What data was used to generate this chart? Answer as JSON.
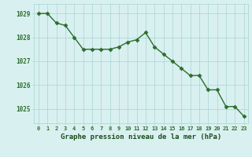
{
  "hours": [
    0,
    1,
    2,
    3,
    4,
    5,
    6,
    7,
    8,
    9,
    10,
    11,
    12,
    13,
    14,
    15,
    16,
    17,
    18,
    19,
    20,
    21,
    22,
    23
  ],
  "pressure": [
    1029.0,
    1029.0,
    1028.6,
    1028.5,
    1028.0,
    1027.5,
    1027.5,
    1027.5,
    1027.5,
    1027.6,
    1027.8,
    1027.9,
    1028.2,
    1027.6,
    1027.3,
    1027.0,
    1026.7,
    1026.4,
    1026.4,
    1025.8,
    1025.8,
    1025.1,
    1025.1,
    1024.7
  ],
  "line_color": "#2d6e2d",
  "marker": "D",
  "marker_size": 2.5,
  "bg_color": "#d9f0f0",
  "grid_color": "#b0d8d8",
  "xlabel": "Graphe pression niveau de la mer (hPa)",
  "xlabel_color": "#1a4d1a",
  "tick_color": "#2d6e2d",
  "ylim": [
    1024.4,
    1029.4
  ],
  "yticks": [
    1025,
    1026,
    1027,
    1028,
    1029
  ],
  "xlim": [
    -0.5,
    23.5
  ],
  "xticks": [
    0,
    1,
    2,
    3,
    4,
    5,
    6,
    7,
    8,
    9,
    10,
    11,
    12,
    13,
    14,
    15,
    16,
    17,
    18,
    19,
    20,
    21,
    22,
    23
  ]
}
